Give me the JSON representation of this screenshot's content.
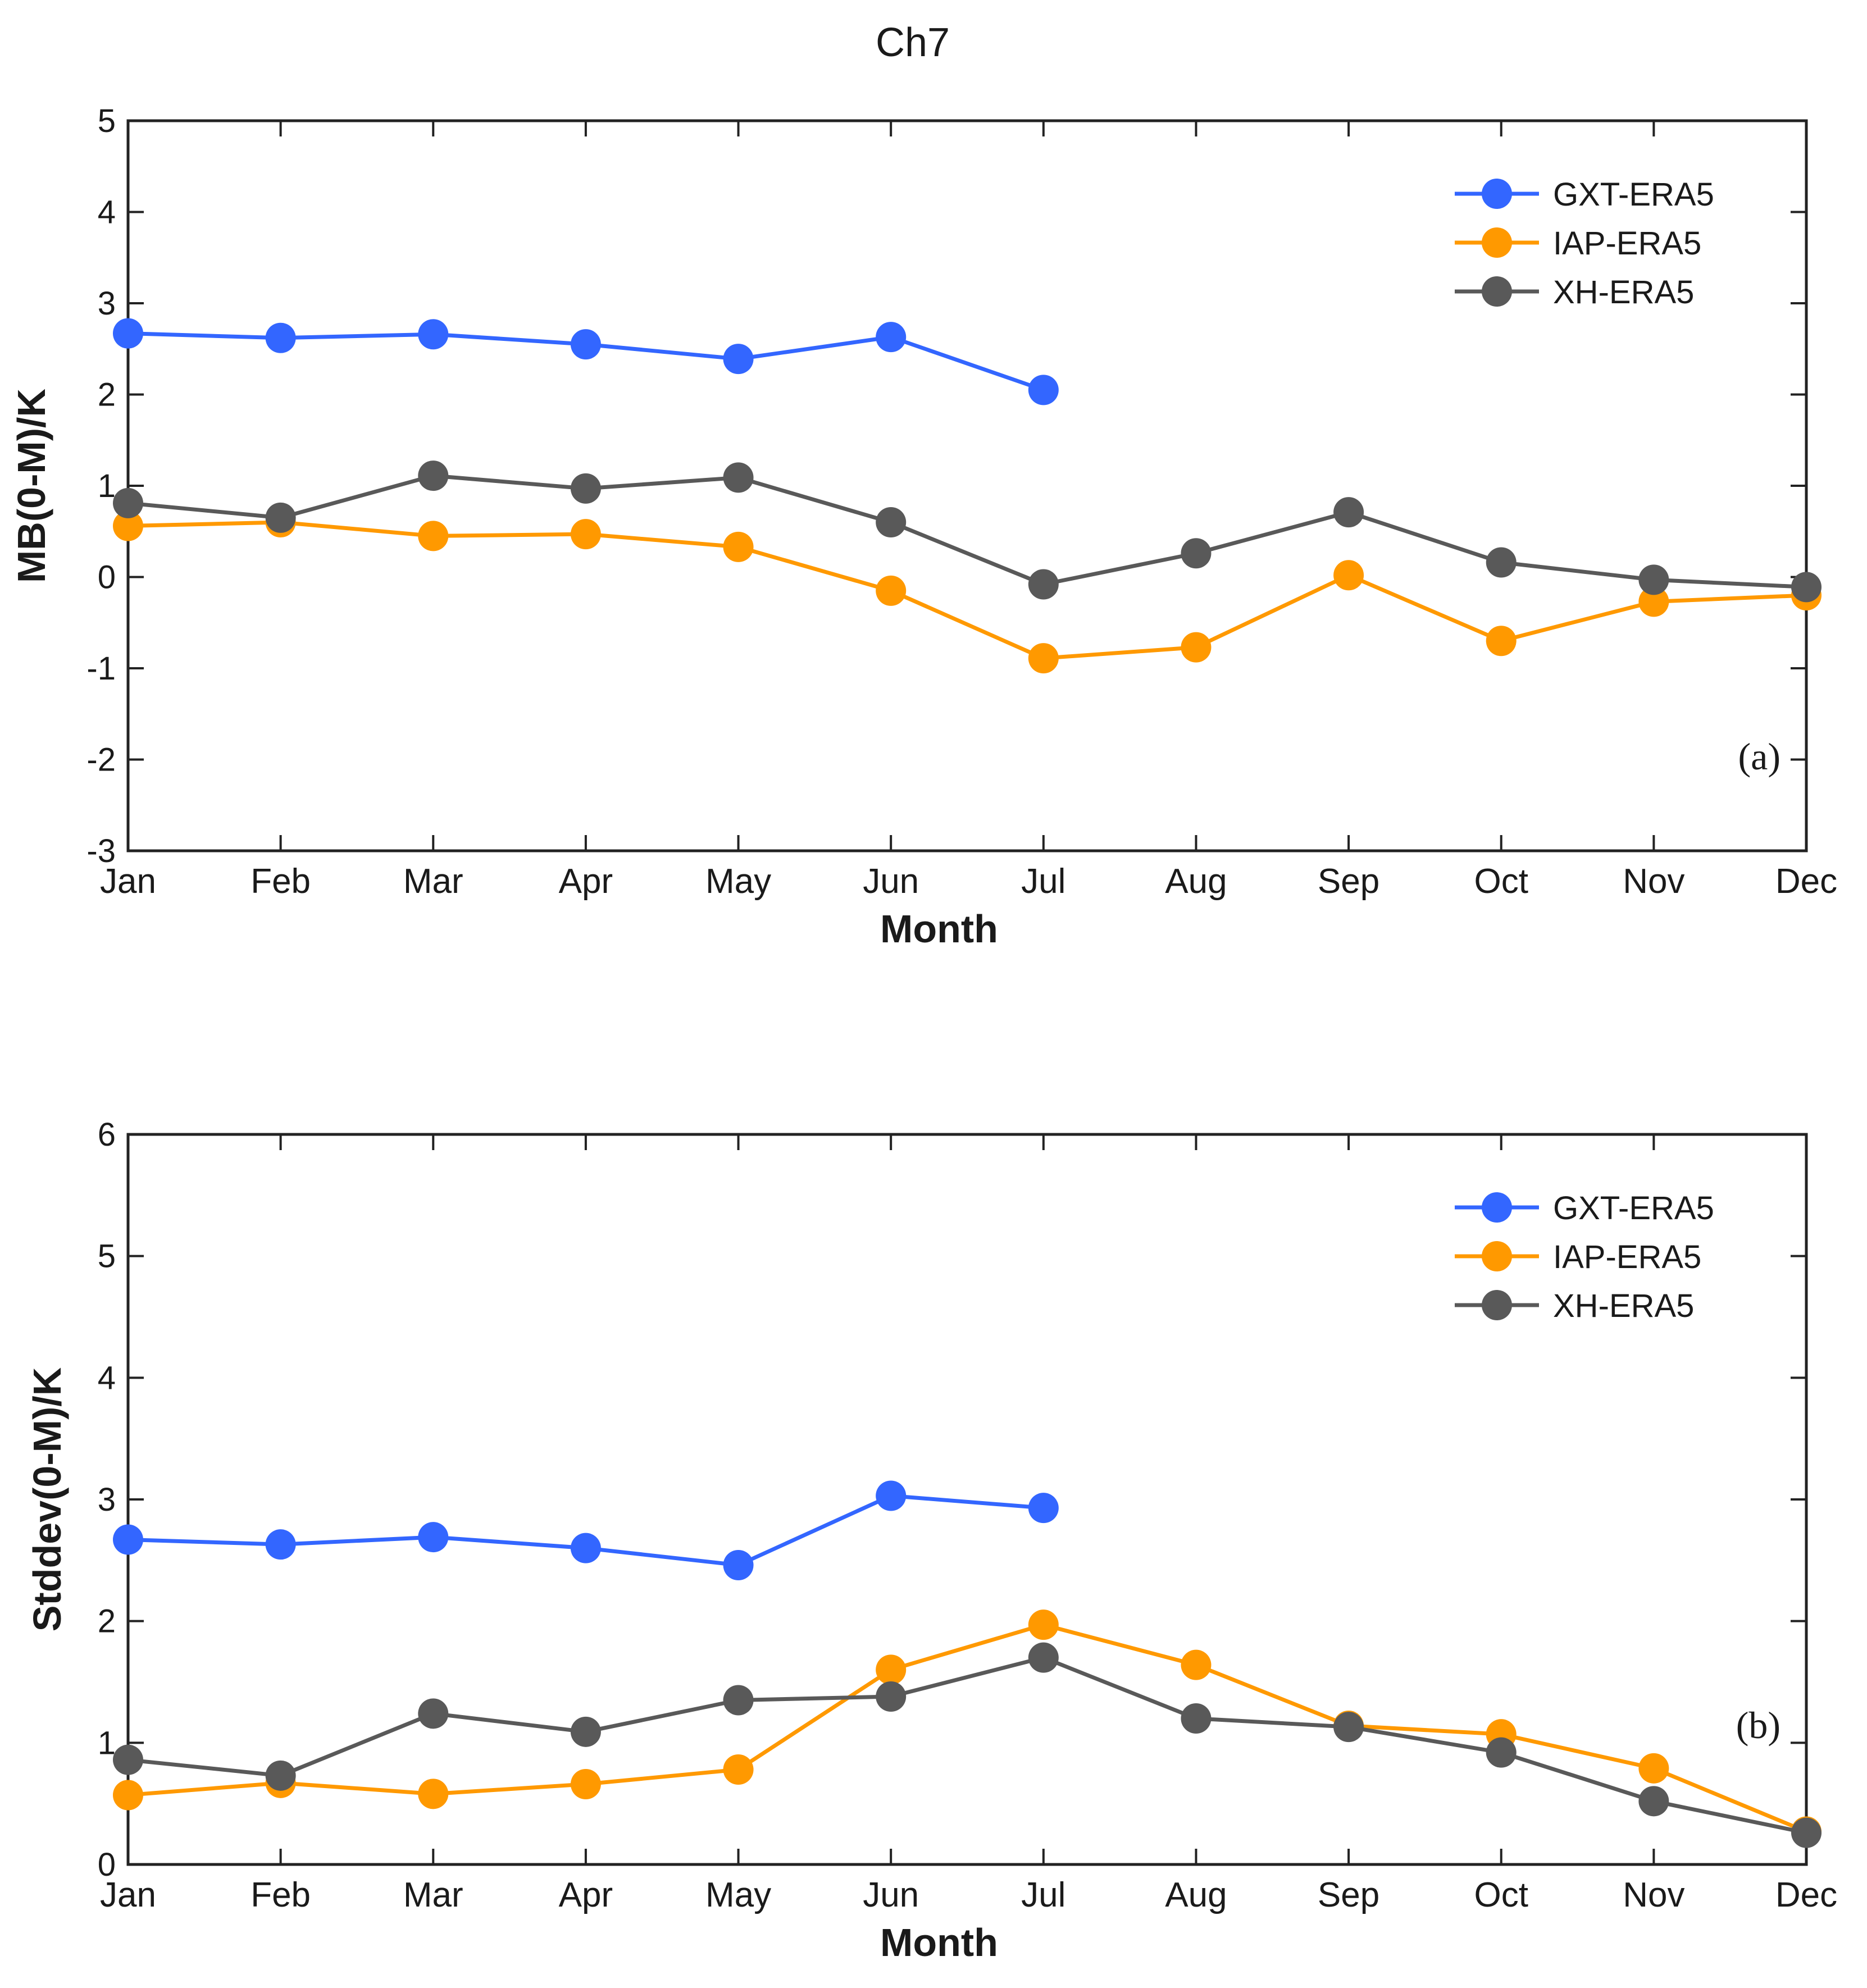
{
  "figure": {
    "title": "Ch7"
  },
  "chart_data": [
    {
      "type": "line",
      "panel_label": "(a)",
      "title": "",
      "xlabel": "Month",
      "ylabel": "MB(0-M)/K",
      "ylim": [
        -3,
        5
      ],
      "yticks": [
        -3,
        -2,
        -1,
        0,
        1,
        2,
        3,
        4,
        5
      ],
      "categories": [
        "Jan",
        "Feb",
        "Mar",
        "Apr",
        "May",
        "Jun",
        "Jul",
        "Aug",
        "Sep",
        "Oct",
        "Nov",
        "Dec"
      ],
      "legend_position": "top-right",
      "grid": false,
      "series": [
        {
          "name": "GXT-ERA5",
          "color": "#3366ff",
          "values": [
            2.67,
            2.62,
            2.66,
            2.55,
            2.39,
            2.63,
            2.05,
            null,
            null,
            null,
            null,
            null
          ]
        },
        {
          "name": "IAP-ERA5",
          "color": "#ff9900",
          "values": [
            0.56,
            0.6,
            0.45,
            0.47,
            0.33,
            -0.15,
            -0.89,
            -0.77,
            0.02,
            -0.7,
            -0.27,
            -0.2
          ]
        },
        {
          "name": "XH-ERA5",
          "color": "#595959",
          "values": [
            0.81,
            0.65,
            1.11,
            0.97,
            1.09,
            0.6,
            -0.08,
            0.26,
            0.71,
            0.16,
            -0.03,
            -0.11
          ]
        }
      ]
    },
    {
      "type": "line",
      "panel_label": "(b)",
      "title": "",
      "xlabel": "Month",
      "ylabel": "Stddev(0-M)/K",
      "ylim": [
        0,
        6
      ],
      "yticks": [
        0,
        1,
        2,
        3,
        4,
        5,
        6
      ],
      "categories": [
        "Jan",
        "Feb",
        "Mar",
        "Apr",
        "May",
        "Jun",
        "Jul",
        "Aug",
        "Sep",
        "Oct",
        "Nov",
        "Dec"
      ],
      "legend_position": "top-right",
      "grid": false,
      "series": [
        {
          "name": "GXT-ERA5",
          "color": "#3366ff",
          "values": [
            2.67,
            2.63,
            2.69,
            2.6,
            2.46,
            3.03,
            2.93,
            null,
            null,
            null,
            null,
            null
          ]
        },
        {
          "name": "IAP-ERA5",
          "color": "#ff9900",
          "values": [
            0.57,
            0.67,
            0.58,
            0.66,
            0.78,
            1.6,
            1.97,
            1.64,
            1.14,
            1.07,
            0.79,
            0.27
          ]
        },
        {
          "name": "XH-ERA5",
          "color": "#595959",
          "values": [
            0.86,
            0.73,
            1.24,
            1.09,
            1.35,
            1.38,
            1.7,
            1.2,
            1.13,
            0.92,
            0.52,
            0.26
          ]
        }
      ]
    }
  ]
}
